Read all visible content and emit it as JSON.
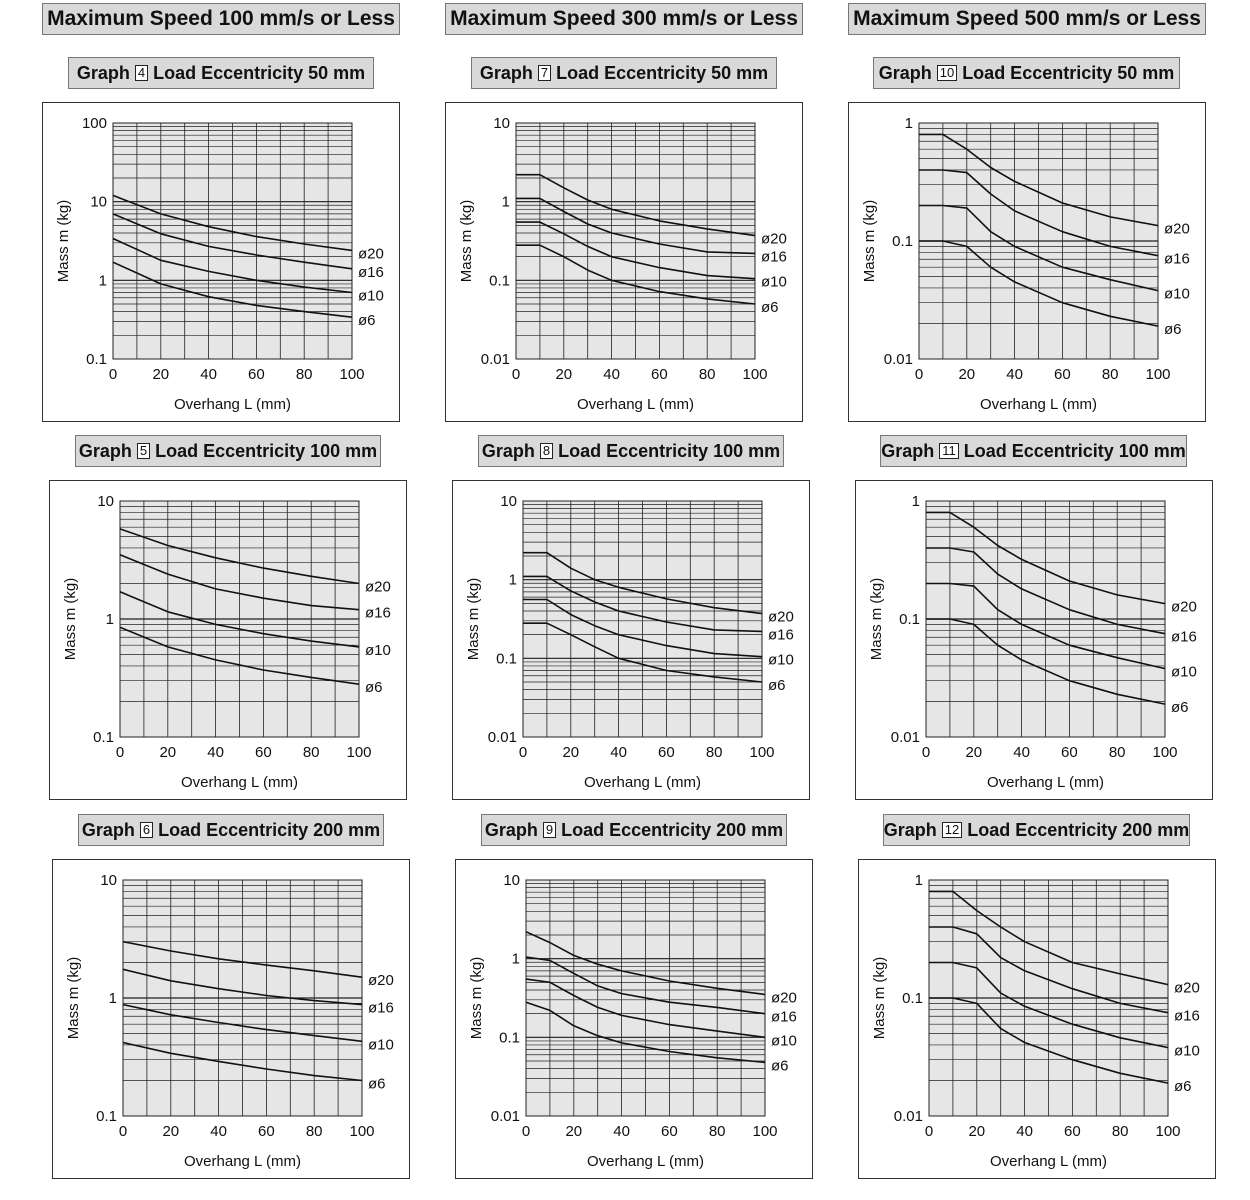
{
  "columns": [
    {
      "title": "Maximum Speed 100 mm/s or Less"
    },
    {
      "title": "Maximum Speed 300 mm/s or Less"
    },
    {
      "title": "Maximum Speed 500 mm/s or Less"
    }
  ],
  "graph_word": "Graph",
  "chart_data": [
    {
      "type": "line",
      "graph_number": "4",
      "title": "Load Eccentricity 50 mm",
      "xlabel": "Overhang L (mm)",
      "ylabel": "Mass m (kg)",
      "yscale": "log",
      "ylim": [
        0.1,
        100
      ],
      "ytick_labels": [
        "100",
        "10",
        "1",
        "0.1"
      ],
      "xlim": [
        0,
        100
      ],
      "xtick_labels": [
        "0",
        "20",
        "40",
        "60",
        "80",
        "100"
      ],
      "grid": true,
      "series": [
        {
          "name": "ø20",
          "x": [
            0,
            20,
            40,
            60,
            80,
            100
          ],
          "values": [
            12,
            7,
            4.8,
            3.6,
            2.9,
            2.4
          ]
        },
        {
          "name": "ø16",
          "x": [
            0,
            20,
            40,
            60,
            80,
            100
          ],
          "values": [
            7,
            3.9,
            2.7,
            2.1,
            1.7,
            1.4
          ]
        },
        {
          "name": "ø10",
          "x": [
            0,
            20,
            40,
            60,
            80,
            100
          ],
          "values": [
            3.4,
            1.8,
            1.3,
            1.0,
            0.82,
            0.7
          ]
        },
        {
          "name": "ø6",
          "x": [
            0,
            20,
            40,
            60,
            80,
            100
          ],
          "values": [
            1.7,
            0.9,
            0.62,
            0.48,
            0.4,
            0.34
          ]
        }
      ]
    },
    {
      "type": "line",
      "graph_number": "7",
      "title": "Load Eccentricity 50 mm",
      "xlabel": "Overhang L (mm)",
      "ylabel": "Mass m (kg)",
      "yscale": "log",
      "ylim": [
        0.01,
        10
      ],
      "ytick_labels": [
        "10",
        "1",
        "0.1",
        "0.01"
      ],
      "xlim": [
        0,
        100
      ],
      "xtick_labels": [
        "0",
        "20",
        "40",
        "60",
        "80",
        "100"
      ],
      "grid": true,
      "series": [
        {
          "name": "ø20",
          "x": [
            0,
            10,
            20,
            30,
            40,
            60,
            80,
            100
          ],
          "values": [
            2.2,
            2.2,
            1.5,
            1.05,
            0.8,
            0.57,
            0.45,
            0.37
          ]
        },
        {
          "name": "ø16",
          "x": [
            0,
            10,
            20,
            30,
            40,
            60,
            80,
            100
          ],
          "values": [
            1.1,
            1.1,
            0.75,
            0.52,
            0.4,
            0.29,
            0.23,
            0.22
          ]
        },
        {
          "name": "ø10",
          "x": [
            0,
            10,
            20,
            30,
            40,
            60,
            80,
            100
          ],
          "values": [
            0.55,
            0.55,
            0.39,
            0.27,
            0.2,
            0.145,
            0.115,
            0.105
          ]
        },
        {
          "name": "ø6",
          "x": [
            0,
            10,
            20,
            30,
            40,
            60,
            80,
            100
          ],
          "values": [
            0.28,
            0.28,
            0.2,
            0.135,
            0.1,
            0.072,
            0.058,
            0.05
          ]
        }
      ]
    },
    {
      "type": "line",
      "graph_number": "10",
      "title": "Load Eccentricity 50 mm",
      "xlabel": "Overhang L (mm)",
      "ylabel": "Mass m (kg)",
      "yscale": "log",
      "ylim": [
        0.01,
        1
      ],
      "ytick_labels": [
        "1",
        "0.1",
        "0.01"
      ],
      "xlim": [
        0,
        100
      ],
      "xtick_labels": [
        "0",
        "20",
        "40",
        "60",
        "80",
        "100"
      ],
      "grid": true,
      "series": [
        {
          "name": "ø20",
          "x": [
            0,
            10,
            20,
            30,
            40,
            60,
            80,
            100
          ],
          "values": [
            0.8,
            0.8,
            0.6,
            0.42,
            0.32,
            0.21,
            0.16,
            0.135
          ]
        },
        {
          "name": "ø16",
          "x": [
            0,
            10,
            20,
            30,
            40,
            60,
            80,
            100
          ],
          "values": [
            0.4,
            0.4,
            0.38,
            0.25,
            0.18,
            0.12,
            0.09,
            0.075
          ]
        },
        {
          "name": "ø10",
          "x": [
            0,
            10,
            20,
            30,
            40,
            60,
            80,
            100
          ],
          "values": [
            0.2,
            0.2,
            0.19,
            0.12,
            0.09,
            0.06,
            0.047,
            0.038
          ]
        },
        {
          "name": "ø6",
          "x": [
            0,
            10,
            20,
            30,
            40,
            60,
            80,
            100
          ],
          "values": [
            0.1,
            0.1,
            0.09,
            0.06,
            0.045,
            0.03,
            0.023,
            0.019
          ]
        }
      ]
    },
    {
      "type": "line",
      "graph_number": "5",
      "title": "Load Eccentricity 100 mm",
      "xlabel": "Overhang L (mm)",
      "ylabel": "Mass m (kg)",
      "yscale": "log",
      "ylim": [
        0.1,
        10
      ],
      "ytick_labels": [
        "10",
        "1",
        "0.1"
      ],
      "xlim": [
        0,
        100
      ],
      "xtick_labels": [
        "0",
        "20",
        "40",
        "60",
        "80",
        "100"
      ],
      "grid": true,
      "series": [
        {
          "name": "ø20",
          "x": [
            0,
            20,
            40,
            60,
            80,
            100
          ],
          "values": [
            5.8,
            4.2,
            3.3,
            2.7,
            2.3,
            2.0
          ]
        },
        {
          "name": "ø16",
          "x": [
            0,
            20,
            40,
            60,
            80,
            100
          ],
          "values": [
            3.5,
            2.4,
            1.8,
            1.5,
            1.3,
            1.2
          ]
        },
        {
          "name": "ø10",
          "x": [
            0,
            20,
            40,
            60,
            80,
            100
          ],
          "values": [
            1.7,
            1.15,
            0.9,
            0.75,
            0.65,
            0.58
          ]
        },
        {
          "name": "ø6",
          "x": [
            0,
            20,
            40,
            60,
            80,
            100
          ],
          "values": [
            0.85,
            0.58,
            0.45,
            0.37,
            0.32,
            0.28
          ]
        }
      ]
    },
    {
      "type": "line",
      "graph_number": "8",
      "title": "Load Eccentricity 100 mm",
      "xlabel": "Overhang L (mm)",
      "ylabel": "Mass m (kg)",
      "yscale": "log",
      "ylim": [
        0.01,
        10
      ],
      "ytick_labels": [
        "10",
        "1",
        "0.1",
        "0.01"
      ],
      "xlim": [
        0,
        100
      ],
      "xtick_labels": [
        "0",
        "20",
        "40",
        "60",
        "80",
        "100"
      ],
      "grid": true,
      "series": [
        {
          "name": "ø20",
          "x": [
            0,
            10,
            20,
            30,
            40,
            60,
            80,
            100
          ],
          "values": [
            2.2,
            2.2,
            1.4,
            1.0,
            0.8,
            0.57,
            0.44,
            0.37
          ]
        },
        {
          "name": "ø16",
          "x": [
            0,
            10,
            20,
            30,
            40,
            60,
            80,
            100
          ],
          "values": [
            1.1,
            1.1,
            0.72,
            0.52,
            0.4,
            0.29,
            0.23,
            0.22
          ]
        },
        {
          "name": "ø10",
          "x": [
            0,
            10,
            20,
            30,
            40,
            60,
            80,
            100
          ],
          "values": [
            0.56,
            0.56,
            0.36,
            0.26,
            0.2,
            0.145,
            0.115,
            0.105
          ]
        },
        {
          "name": "ø6",
          "x": [
            0,
            10,
            20,
            30,
            40,
            60,
            80,
            100
          ],
          "values": [
            0.28,
            0.28,
            0.2,
            0.14,
            0.1,
            0.07,
            0.058,
            0.05
          ]
        }
      ]
    },
    {
      "type": "line",
      "graph_number": "11",
      "title": "Load Eccentricity 100 mm",
      "xlabel": "Overhang L (mm)",
      "ylabel": "Mass m (kg)",
      "yscale": "log",
      "ylim": [
        0.01,
        1
      ],
      "ytick_labels": [
        "1",
        "0.1",
        "0.01"
      ],
      "xlim": [
        0,
        100
      ],
      "xtick_labels": [
        "0",
        "20",
        "40",
        "60",
        "80",
        "100"
      ],
      "grid": true,
      "series": [
        {
          "name": "ø20",
          "x": [
            0,
            10,
            20,
            30,
            40,
            60,
            80,
            100
          ],
          "values": [
            0.8,
            0.8,
            0.6,
            0.42,
            0.32,
            0.21,
            0.16,
            0.135
          ]
        },
        {
          "name": "ø16",
          "x": [
            0,
            10,
            20,
            30,
            40,
            60,
            80,
            100
          ],
          "values": [
            0.4,
            0.4,
            0.37,
            0.24,
            0.18,
            0.12,
            0.09,
            0.075
          ]
        },
        {
          "name": "ø10",
          "x": [
            0,
            10,
            20,
            30,
            40,
            60,
            80,
            100
          ],
          "values": [
            0.2,
            0.2,
            0.19,
            0.12,
            0.09,
            0.06,
            0.047,
            0.038
          ]
        },
        {
          "name": "ø6",
          "x": [
            0,
            10,
            20,
            30,
            40,
            60,
            80,
            100
          ],
          "values": [
            0.1,
            0.1,
            0.09,
            0.06,
            0.045,
            0.03,
            0.023,
            0.019
          ]
        }
      ]
    },
    {
      "type": "line",
      "graph_number": "6",
      "title": "Load Eccentricity 200 mm",
      "xlabel": "Overhang L (mm)",
      "ylabel": "Mass m (kg)",
      "yscale": "log",
      "ylim": [
        0.1,
        10
      ],
      "ytick_labels": [
        "10",
        "1",
        "0.1"
      ],
      "xlim": [
        0,
        100
      ],
      "xtick_labels": [
        "0",
        "20",
        "40",
        "60",
        "80",
        "100"
      ],
      "grid": true,
      "series": [
        {
          "name": "ø20",
          "x": [
            0,
            20,
            40,
            60,
            80,
            100
          ],
          "values": [
            3.0,
            2.5,
            2.15,
            1.9,
            1.7,
            1.5
          ]
        },
        {
          "name": "ø16",
          "x": [
            0,
            20,
            40,
            60,
            80,
            100
          ],
          "values": [
            1.75,
            1.4,
            1.2,
            1.05,
            0.95,
            0.88
          ]
        },
        {
          "name": "ø10",
          "x": [
            0,
            20,
            40,
            60,
            80,
            100
          ],
          "values": [
            0.88,
            0.72,
            0.62,
            0.54,
            0.48,
            0.43
          ]
        },
        {
          "name": "ø6",
          "x": [
            0,
            20,
            40,
            60,
            80,
            100
          ],
          "values": [
            0.42,
            0.34,
            0.29,
            0.25,
            0.22,
            0.2
          ]
        }
      ]
    },
    {
      "type": "line",
      "graph_number": "9",
      "title": "Load Eccentricity 200 mm",
      "xlabel": "Overhang L (mm)",
      "ylabel": "Mass m (kg)",
      "yscale": "log",
      "ylim": [
        0.01,
        10
      ],
      "ytick_labels": [
        "10",
        "1",
        "0.1",
        "0.01"
      ],
      "xlim": [
        0,
        100
      ],
      "xtick_labels": [
        "0",
        "20",
        "40",
        "60",
        "80",
        "100"
      ],
      "grid": true,
      "series": [
        {
          "name": "ø20",
          "x": [
            0,
            10,
            20,
            30,
            40,
            60,
            80,
            100
          ],
          "values": [
            2.2,
            1.6,
            1.1,
            0.85,
            0.7,
            0.52,
            0.42,
            0.35
          ]
        },
        {
          "name": "ø16",
          "x": [
            0,
            10,
            20,
            30,
            40,
            60,
            80,
            100
          ],
          "values": [
            1.05,
            0.95,
            0.65,
            0.45,
            0.36,
            0.28,
            0.24,
            0.2
          ]
        },
        {
          "name": "ø10",
          "x": [
            0,
            10,
            20,
            30,
            40,
            60,
            80,
            100
          ],
          "values": [
            0.55,
            0.5,
            0.34,
            0.24,
            0.19,
            0.145,
            0.12,
            0.1
          ]
        },
        {
          "name": "ø6",
          "x": [
            0,
            10,
            20,
            30,
            40,
            60,
            80,
            100
          ],
          "values": [
            0.28,
            0.22,
            0.14,
            0.105,
            0.085,
            0.066,
            0.055,
            0.048
          ]
        }
      ]
    },
    {
      "type": "line",
      "graph_number": "12",
      "title": "Load Eccentricity 200 mm",
      "xlabel": "Overhang L (mm)",
      "ylabel": "Mass m (kg)",
      "yscale": "log",
      "ylim": [
        0.01,
        1
      ],
      "ytick_labels": [
        "1",
        "0.1",
        "0.01"
      ],
      "xlim": [
        0,
        100
      ],
      "xtick_labels": [
        "0",
        "20",
        "40",
        "60",
        "80",
        "100"
      ],
      "grid": true,
      "series": [
        {
          "name": "ø20",
          "x": [
            0,
            10,
            20,
            30,
            40,
            60,
            80,
            100
          ],
          "values": [
            0.8,
            0.8,
            0.55,
            0.4,
            0.3,
            0.2,
            0.16,
            0.13
          ]
        },
        {
          "name": "ø16",
          "x": [
            0,
            10,
            20,
            30,
            40,
            60,
            80,
            100
          ],
          "values": [
            0.4,
            0.4,
            0.35,
            0.22,
            0.17,
            0.12,
            0.09,
            0.075
          ]
        },
        {
          "name": "ø10",
          "x": [
            0,
            10,
            20,
            30,
            40,
            60,
            80,
            100
          ],
          "values": [
            0.2,
            0.2,
            0.18,
            0.11,
            0.085,
            0.06,
            0.046,
            0.038
          ]
        },
        {
          "name": "ø6",
          "x": [
            0,
            10,
            20,
            30,
            40,
            60,
            80,
            100
          ],
          "values": [
            0.1,
            0.1,
            0.09,
            0.055,
            0.042,
            0.03,
            0.023,
            0.019
          ]
        }
      ]
    }
  ]
}
